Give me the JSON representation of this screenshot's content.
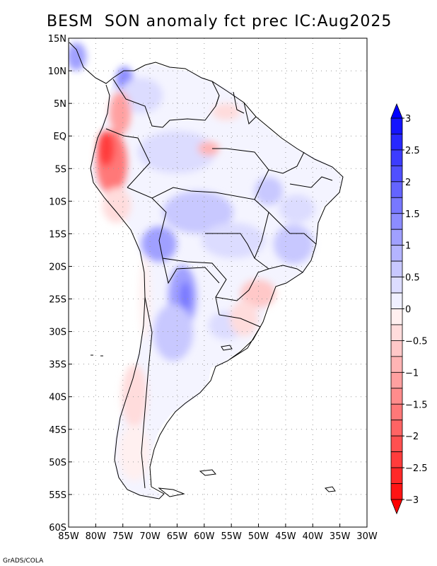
{
  "title": "BESM  SON anomaly fct prec IC:Aug2025",
  "credit": "GrADS/COLA",
  "lat_labels": [
    "15N",
    "10N",
    "5N",
    "EQ",
    "5S",
    "10S",
    "15S",
    "20S",
    "25S",
    "30S",
    "35S",
    "40S",
    "45S",
    "50S",
    "55S",
    "60S"
  ],
  "lon_labels": [
    "85W",
    "80W",
    "75W",
    "70W",
    "65W",
    "60W",
    "55W",
    "50W",
    "45W",
    "40W",
    "35W",
    "30W"
  ],
  "colorbar": {
    "labels": [
      "3",
      "2.5",
      "2",
      "1.5",
      "1",
      "0.5",
      "0",
      "−0.5",
      "−1",
      "−1.5",
      "−2",
      "−2.5",
      "−3"
    ],
    "levels": [
      3,
      2.5,
      2,
      1.5,
      1,
      0.5,
      0,
      -0.5,
      -1,
      -1.5,
      -2,
      -2.5,
      -3
    ],
    "colors": [
      "#1414ff",
      "#2828ff",
      "#3c3cff",
      "#5050ff",
      "#6464ff",
      "#7878ff",
      "#8c8cff",
      "#a0a0ff",
      "#b4b4ff",
      "#c8c8ff",
      "#dcdcff",
      "#f0f0ff",
      "#fff0f0",
      "#ffdcdc",
      "#ffc8c8",
      "#ffb4b4",
      "#ffa0a0",
      "#ff8c8c",
      "#ff7878",
      "#ff6464",
      "#ff5050",
      "#ff3c3c",
      "#ff2828",
      "#ff1414"
    ]
  },
  "chart_data": {
    "type": "map",
    "title": "BESM  SON anomaly fct prec IC:Aug2025",
    "region": "South America",
    "lon_range": [
      -85,
      -30
    ],
    "lat_range": [
      -60,
      15
    ],
    "variable": "precipitation anomaly forecast",
    "season": "SON",
    "initial_condition": "Aug2025",
    "colorbar_range": [
      -3,
      3
    ],
    "colorbar_step": 0.25
  }
}
